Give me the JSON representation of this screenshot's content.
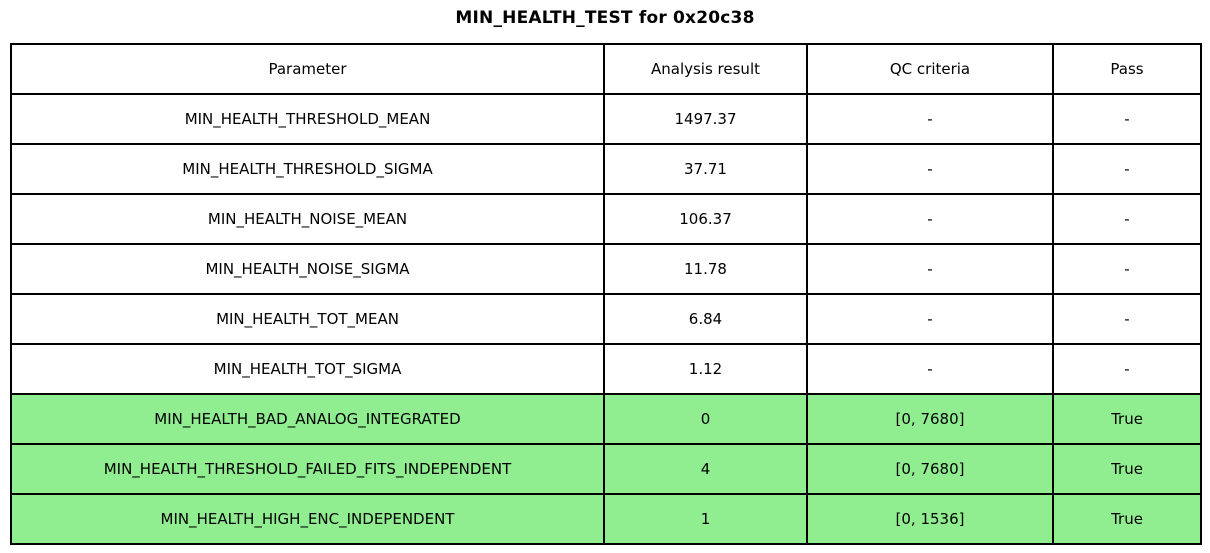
{
  "title": "MIN_HEALTH_TEST for 0x20c38",
  "colors": {
    "highlight_green": "#90EE90",
    "border": "#000000",
    "background": "#FFFFFF"
  },
  "chart_data": {
    "type": "table",
    "title": "MIN_HEALTH_TEST for 0x20c38",
    "columns": [
      "Parameter",
      "Analysis result",
      "QC criteria",
      "Pass"
    ],
    "rows": [
      {
        "cells": [
          "MIN_HEALTH_THRESHOLD_MEAN",
          "1497.37",
          "-",
          "-"
        ],
        "highlight": false
      },
      {
        "cells": [
          "MIN_HEALTH_THRESHOLD_SIGMA",
          "37.71",
          "-",
          "-"
        ],
        "highlight": false
      },
      {
        "cells": [
          "MIN_HEALTH_NOISE_MEAN",
          "106.37",
          "-",
          "-"
        ],
        "highlight": false
      },
      {
        "cells": [
          "MIN_HEALTH_NOISE_SIGMA",
          "11.78",
          "-",
          "-"
        ],
        "highlight": false
      },
      {
        "cells": [
          "MIN_HEALTH_TOT_MEAN",
          "6.84",
          "-",
          "-"
        ],
        "highlight": false
      },
      {
        "cells": [
          "MIN_HEALTH_TOT_SIGMA",
          "1.12",
          "-",
          "-"
        ],
        "highlight": false
      },
      {
        "cells": [
          "MIN_HEALTH_BAD_ANALOG_INTEGRATED",
          "0",
          "[0, 7680]",
          "True"
        ],
        "highlight": true
      },
      {
        "cells": [
          "MIN_HEALTH_THRESHOLD_FAILED_FITS_INDEPENDENT",
          "4",
          "[0, 7680]",
          "True"
        ],
        "highlight": true
      },
      {
        "cells": [
          "MIN_HEALTH_HIGH_ENC_INDEPENDENT",
          "1",
          "[0, 1536]",
          "True"
        ],
        "highlight": true
      }
    ]
  }
}
